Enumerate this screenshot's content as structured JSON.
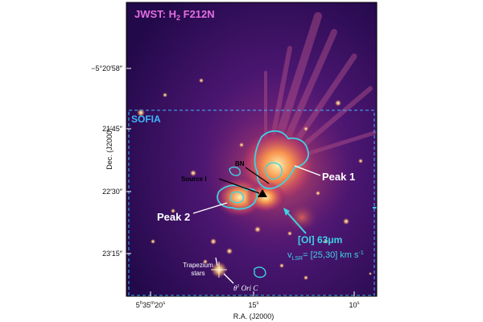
{
  "figure": {
    "panel_title": {
      "prefix": "JWST: H",
      "sub": "2",
      "suffix": " F212N"
    },
    "region_label": "SOFIA",
    "labels": {
      "bn": "BN",
      "source_i": "Source I",
      "peak1": "Peak 1",
      "peak2": "Peak 2",
      "oi_line": "[OI] 63μm",
      "vlsr": {
        "v": "v",
        "sub": "LSR",
        "rest": "= [25,30] km s",
        "sup": "-1"
      },
      "trapezium": [
        "Trapezium",
        "stars"
      ],
      "theta": {
        "base": "θ",
        "sup": "1",
        "rest": " Ori C"
      }
    },
    "axes": {
      "y_title": "Dec. (J2000)",
      "x_title": "R.A. (J2000)",
      "y_ticks": [
        "−5°20′58″",
        "21′45″",
        "22′30″",
        "23′15″"
      ],
      "x_ticks": [
        {
          "base": "5",
          "h": "h",
          "m_val": "35",
          "m": "m",
          "s_val": "20",
          "s": "s"
        },
        {
          "base": "15",
          "s": "s"
        },
        {
          "base": "10",
          "s": "s"
        }
      ]
    },
    "colors": {
      "background": "#2a0c55",
      "title": "#e36ee0",
      "contour": "#3fd2e6",
      "label": "#ffffff",
      "sofia": "#3fb7ff"
    }
  }
}
